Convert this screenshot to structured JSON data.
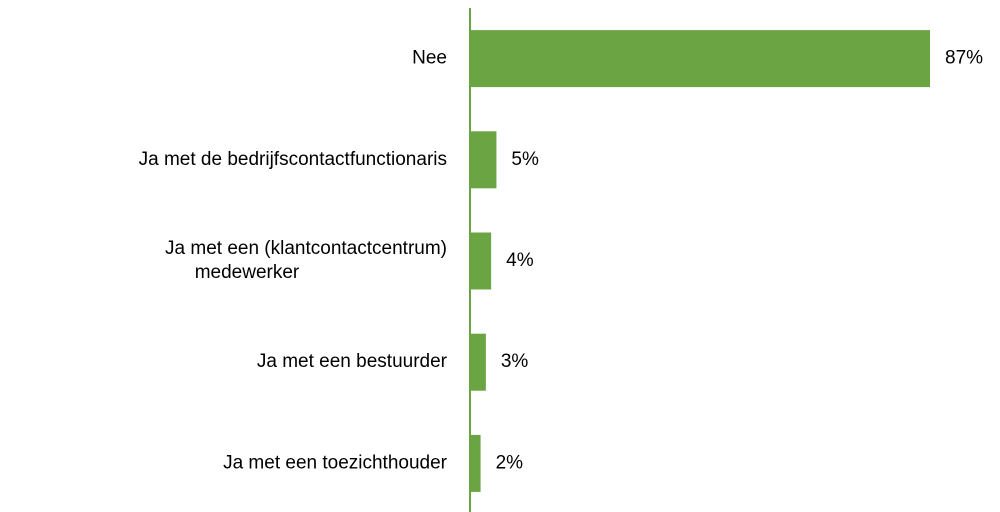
{
  "chart_data": {
    "type": "hbar",
    "categories": [
      "Nee",
      "Ja met de bedrijfscontactfunctionaris",
      "Ja met een (klantcontactcentrum)\nmedewerker",
      "Ja met een bestuurder",
      "Ja met een toezichthouder"
    ],
    "values": [
      87,
      5,
      4,
      3,
      2
    ],
    "value_labels": [
      "87%",
      "5%",
      "4%",
      "3%",
      "2%"
    ],
    "color": "#6aa443"
  }
}
